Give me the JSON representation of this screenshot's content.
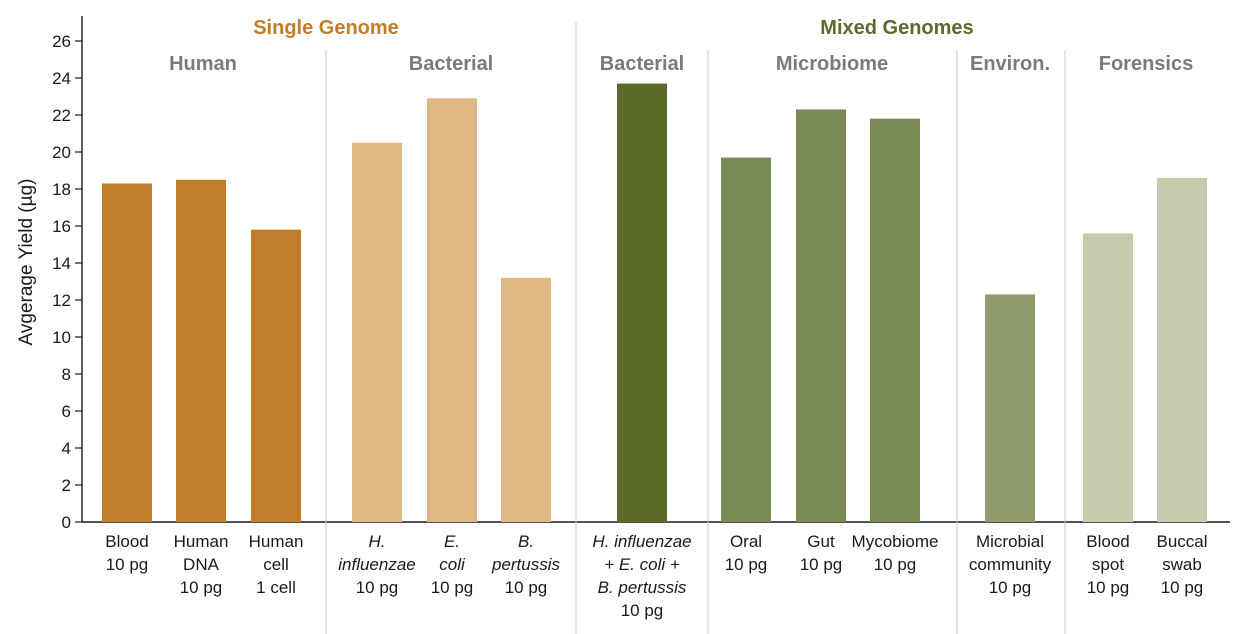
{
  "chart_data": {
    "type": "bar",
    "ylabel": "Avgerage Yield  (µg)",
    "ylim": [
      0,
      27
    ],
    "yticks": [
      0,
      2,
      4,
      6,
      8,
      10,
      12,
      14,
      16,
      18,
      20,
      22,
      24,
      26
    ],
    "grid": false,
    "supergroups": [
      {
        "label": "Single Genome",
        "color": "#c17d2a"
      },
      {
        "label": "Mixed Genomes",
        "color": "#5a6b2a"
      }
    ],
    "groups": [
      {
        "label": "Human"
      },
      {
        "label": "Bacterial"
      },
      {
        "label": "Bacterial"
      },
      {
        "label": "Microbiome"
      },
      {
        "label": "Environ."
      },
      {
        "label": "Forensics"
      }
    ],
    "categories": [
      {
        "lines": [
          "Blood",
          "10 pg"
        ],
        "italic": [
          false,
          false
        ],
        "value": 18.3,
        "color": "#c17d2a"
      },
      {
        "lines": [
          "Human",
          "DNA",
          "10 pg"
        ],
        "italic": [
          false,
          false,
          false
        ],
        "value": 18.5,
        "color": "#c17d2a"
      },
      {
        "lines": [
          "Human",
          "cell",
          "1 cell"
        ],
        "italic": [
          false,
          false,
          false
        ],
        "value": 15.8,
        "color": "#c17d2a"
      },
      {
        "lines": [
          "H.",
          "influenzae",
          "10 pg"
        ],
        "italic": [
          true,
          true,
          false
        ],
        "value": 20.5,
        "color": "#dfb886"
      },
      {
        "lines": [
          "E.",
          "coli",
          "10 pg"
        ],
        "italic": [
          true,
          true,
          false
        ],
        "value": 22.9,
        "color": "#dfb886"
      },
      {
        "lines": [
          "B.",
          "pertussis",
          "10 pg"
        ],
        "italic": [
          true,
          true,
          false
        ],
        "value": 13.2,
        "color": "#dfb886"
      },
      {
        "lines": [
          "H. influenzae",
          "+ E. coli +",
          "B. pertussis",
          "10 pg"
        ],
        "italic": [
          true,
          true,
          true,
          false
        ],
        "value": 23.7,
        "color": "#5a6b2a"
      },
      {
        "lines": [
          "Oral",
          "10 pg"
        ],
        "italic": [
          false,
          false
        ],
        "value": 19.7,
        "color": "#7a8a55"
      },
      {
        "lines": [
          "Gut",
          "10 pg"
        ],
        "italic": [
          false,
          false
        ],
        "value": 22.3,
        "color": "#7a8a55"
      },
      {
        "lines": [
          "Mycobiome",
          "10 pg"
        ],
        "italic": [
          false,
          false
        ],
        "value": 21.8,
        "color": "#7a8a55"
      },
      {
        "lines": [
          "Microbial",
          "community",
          "10 pg"
        ],
        "italic": [
          false,
          false,
          false
        ],
        "value": 12.3,
        "color": "#8f9c6c"
      },
      {
        "lines": [
          "Blood",
          "spot",
          "10 pg"
        ],
        "italic": [
          false,
          false,
          false
        ],
        "value": 15.6,
        "color": "#c6cbae"
      },
      {
        "lines": [
          "Buccal",
          "swab",
          "10 pg"
        ],
        "italic": [
          false,
          false,
          false
        ],
        "value": 18.6,
        "color": "#c6cbae"
      }
    ]
  }
}
